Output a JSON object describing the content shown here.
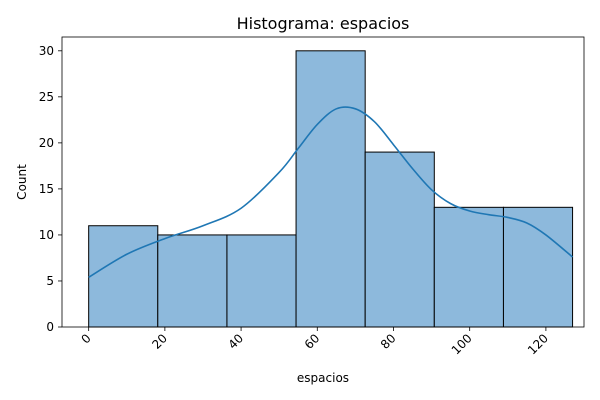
{
  "chart_data": {
    "type": "histogram",
    "title": "Histograma: espacios",
    "xlabel": "espacios",
    "ylabel": "Count",
    "xlim": [
      -7,
      130
    ],
    "ylim": [
      0,
      31.5
    ],
    "bin_edges": [
      0,
      18.14,
      36.29,
      54.43,
      72.57,
      90.71,
      108.86,
      127
    ],
    "counts": [
      11,
      10,
      10,
      30,
      19,
      13,
      13
    ],
    "x_ticks": [
      0,
      20,
      40,
      60,
      80,
      100,
      120
    ],
    "x_tick_labels": [
      "0",
      "20",
      "40",
      "60",
      "80",
      "100",
      "120"
    ],
    "y_ticks": [
      0,
      5,
      10,
      15,
      20,
      25,
      30
    ],
    "y_tick_labels": [
      "0",
      "5",
      "10",
      "15",
      "20",
      "25",
      "30"
    ],
    "kde": {
      "x": [
        0,
        10,
        20,
        30,
        40,
        50,
        55,
        60,
        65,
        70,
        75,
        80,
        85,
        90,
        95,
        100,
        105,
        110,
        115,
        120,
        127
      ],
      "y": [
        5.4,
        7.9,
        9.6,
        11.0,
        12.9,
        16.8,
        19.4,
        22.0,
        23.7,
        23.7,
        22.3,
        19.8,
        17.2,
        14.9,
        13.4,
        12.6,
        12.2,
        11.9,
        11.3,
        10.0,
        7.6
      ]
    },
    "colors": {
      "bar_fill": "#8db9dc",
      "bar_edge": "#000000",
      "kde_line": "#1f77b4"
    }
  }
}
